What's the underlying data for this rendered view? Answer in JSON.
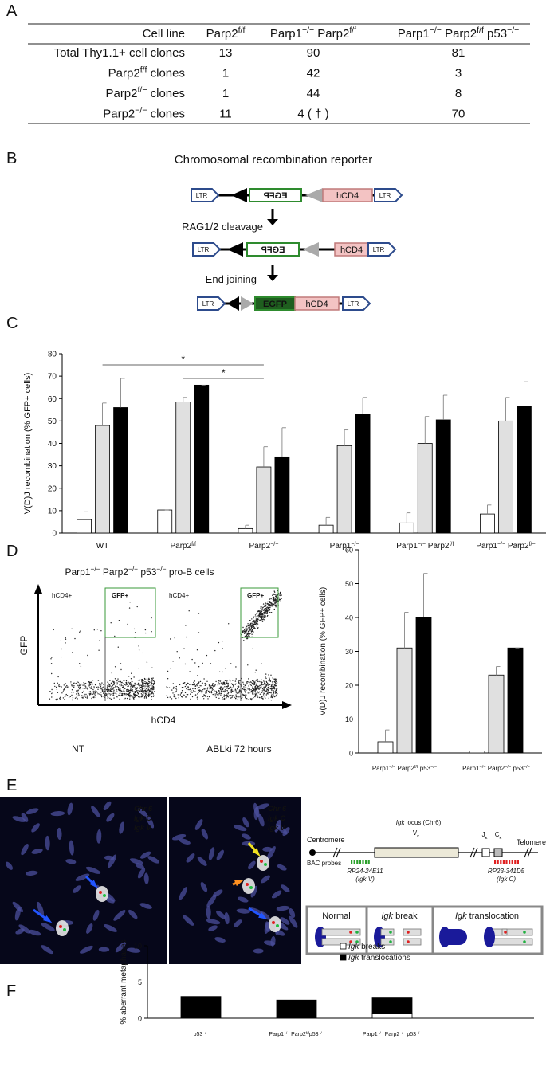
{
  "panels": [
    "A",
    "B",
    "C",
    "D",
    "E",
    "F"
  ],
  "table": {
    "header": [
      "Cell line",
      [
        "Parp2",
        {
          "sup": "f/f"
        }
      ],
      [
        "Parp1",
        {
          "sup": "−/−"
        },
        " Parp2",
        {
          "sup": "f/f"
        }
      ],
      [
        "Parp1",
        {
          "sup": "−/−"
        },
        " Parp2",
        {
          "sup": "f/f"
        },
        " p53",
        {
          "sup": "−/−"
        }
      ]
    ],
    "rows": [
      [
        "Total Thy1.1+ cell clones",
        13,
        90,
        81
      ],
      [
        [
          "Parp2",
          {
            "sup": "f/f"
          },
          "  clones"
        ],
        1,
        42,
        3
      ],
      [
        [
          "Parp2",
          {
            "sup": "f/−"
          },
          "  clones"
        ],
        1,
        44,
        8
      ],
      [
        [
          "Parp2",
          {
            "sup": "−/−"
          },
          " clones"
        ],
        11,
        "4 ( † )",
        70
      ]
    ]
  },
  "reporter": {
    "title": "Chromosomal recombination reporter",
    "ltr": "LTR",
    "egfp": "EGFP",
    "hcd4": "hCD4",
    "steps": [
      "RAG1/2 cleavage",
      "End joining"
    ]
  },
  "flow": {
    "title": [
      "Parp1",
      {
        "sup": "−/−"
      },
      " Parp2",
      {
        "sup": "−/−"
      },
      " p53",
      {
        "sup": "−/−"
      },
      " pro-B cells"
    ],
    "y_label": "GFP",
    "x_label": "hCD4",
    "gates": [
      "hCD4+",
      "GFP+"
    ],
    "samples": [
      "NT",
      "ABLki 72 hours"
    ]
  },
  "fish": {
    "legend": [
      "Chr 6",
      "Igk C",
      "Igk V"
    ],
    "centromere": "Centromere",
    "telomere": "Telomere",
    "locus": [
      {
        "i": "Igk"
      },
      " locus (Chr6)"
    ],
    "v": [
      "V",
      {
        "sub": "κ"
      }
    ],
    "j": [
      "J",
      {
        "sub": "κ"
      }
    ],
    "c": [
      "C",
      {
        "sub": "κ"
      }
    ],
    "probes_label": "BAC probes",
    "probes": [
      {
        "name": "RP24-24E11",
        "target": "(Igk V)"
      },
      {
        "name": "RP23-341D5",
        "target": "(Igk C)"
      }
    ],
    "states": [
      "Normal",
      [
        {
          "i": "Igk"
        },
        " break"
      ],
      [
        {
          "i": "Igk"
        },
        " translocation"
      ]
    ]
  },
  "chart_data": [
    {
      "type": "bar",
      "y_label": "V(D)J recombination (% GFP+ cells)",
      "categories": [
        "WT",
        [
          "Parp2",
          {
            "sup": "f/f"
          }
        ],
        [
          "Parp2",
          {
            "sup": "−/−"
          }
        ],
        [
          "Parp1",
          {
            "sup": "−/−"
          }
        ],
        [
          "Parp1",
          {
            "sup": "−/−"
          },
          " Parp2",
          {
            "sup": "f/f"
          }
        ],
        [
          "Parp1",
          {
            "sup": "−/−"
          },
          " Parp2",
          {
            "sup": "f/−"
          }
        ]
      ],
      "series": [
        {
          "color": "#ffffff",
          "values": [
            6,
            10.3,
            2,
            3.5,
            4.5,
            8.5
          ],
          "errors": [
            3.5,
            0,
            1.5,
            3.5,
            4.5,
            4
          ]
        },
        {
          "color": "#e0e0e0",
          "values": [
            48,
            58.5,
            29.5,
            39,
            40,
            50
          ],
          "errors": [
            10,
            2,
            9,
            7,
            12,
            10.5
          ]
        },
        {
          "color": "#000000",
          "values": [
            56,
            66,
            34,
            53,
            50.5,
            56.5
          ],
          "errors": [
            13,
            0,
            13,
            7.5,
            11,
            11
          ]
        }
      ],
      "ylim": [
        0,
        80
      ],
      "yticks": [
        0,
        10,
        20,
        30,
        40,
        50,
        60,
        70,
        80
      ],
      "annotations": [
        "*",
        "*"
      ]
    },
    {
      "type": "bar",
      "y_label": "V(D)J recombination (% GFP+ cells)",
      "categories": [
        [
          "Parp1",
          {
            "sup": "−/−"
          },
          " Parp2",
          {
            "sup": "f/f"
          },
          " p53",
          {
            "sup": "−/−"
          }
        ],
        [
          "Parp1",
          {
            "sup": "−/−"
          },
          " Parp2",
          {
            "sup": "−/−"
          },
          " p53",
          {
            "sup": "−/−"
          }
        ]
      ],
      "series": [
        {
          "color": "#ffffff",
          "values": [
            3.3,
            0.6
          ],
          "errors": [
            3.5,
            0
          ]
        },
        {
          "color": "#e0e0e0",
          "values": [
            31,
            23
          ],
          "errors": [
            10.5,
            2.5
          ]
        },
        {
          "color": "#000000",
          "values": [
            40,
            31
          ],
          "errors": [
            13,
            0
          ]
        }
      ],
      "ylim": [
        0,
        60
      ],
      "yticks": [
        0,
        10,
        20,
        30,
        40,
        50,
        60
      ]
    },
    {
      "type": "stacked_bar",
      "y_label": "% aberrant metaphases",
      "categories": [
        [
          "p53",
          {
            "sup": "−/−"
          }
        ],
        [
          "Parp1",
          {
            "sup": "−/−"
          },
          " Parp2",
          {
            "sup": "f/f"
          },
          "p53",
          {
            "sup": "−/−"
          }
        ],
        [
          "Parp1",
          {
            "sup": "−/−"
          },
          " Parp2",
          {
            "sup": "−/−"
          },
          " p53",
          {
            "sup": "−/−"
          }
        ]
      ],
      "series": [
        {
          "name": [
            {
              "i": "Igk"
            },
            " breaks"
          ],
          "color": "#ffffff",
          "values": [
            0,
            0,
            0.6
          ]
        },
        {
          "name": [
            {
              "i": "Igk"
            },
            " translocations"
          ],
          "color": "#000000",
          "values": [
            3.0,
            2.5,
            2.3
          ]
        }
      ],
      "ylim": [
        0,
        10
      ],
      "yticks": [
        0,
        5,
        10
      ],
      "legend": "upper right"
    }
  ]
}
